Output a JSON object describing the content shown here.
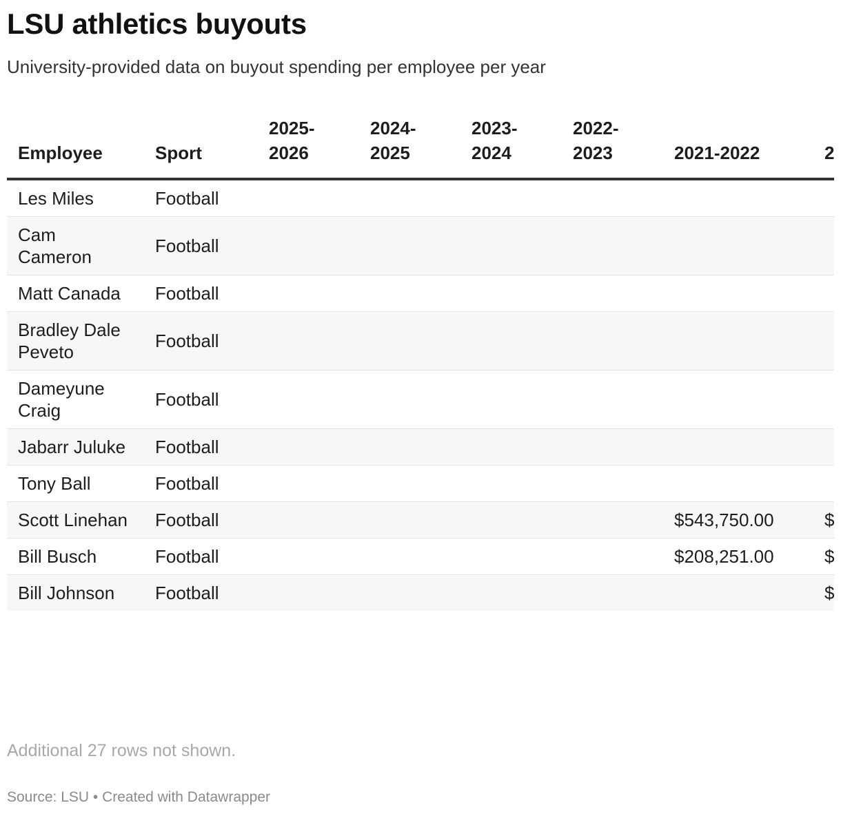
{
  "title": "LSU athletics buyouts",
  "subtitle": "University-provided data on buyout spending per employee per year",
  "chart_data": {
    "type": "table",
    "columns": [
      "Employee",
      "Sport",
      "2025-2026",
      "2024-2025",
      "2023-2024",
      "2022-2023",
      "2021-2022",
      "2"
    ],
    "rows": [
      {
        "employee": "Les Miles",
        "sport": "Football",
        "y2526": "",
        "y2425": "",
        "y2324": "",
        "y2223": "",
        "y2122": "",
        "y2021": ""
      },
      {
        "employee": "Cam Cameron",
        "sport": "Football",
        "y2526": "",
        "y2425": "",
        "y2324": "",
        "y2223": "",
        "y2122": "",
        "y2021": ""
      },
      {
        "employee": "Matt Canada",
        "sport": "Football",
        "y2526": "",
        "y2425": "",
        "y2324": "",
        "y2223": "",
        "y2122": "",
        "y2021": ""
      },
      {
        "employee": "Bradley Dale Peveto",
        "sport": "Football",
        "y2526": "",
        "y2425": "",
        "y2324": "",
        "y2223": "",
        "y2122": "",
        "y2021": ""
      },
      {
        "employee": "Dameyune Craig",
        "sport": "Football",
        "y2526": "",
        "y2425": "",
        "y2324": "",
        "y2223": "",
        "y2122": "",
        "y2021": ""
      },
      {
        "employee": "Jabarr Juluke",
        "sport": "Football",
        "y2526": "",
        "y2425": "",
        "y2324": "",
        "y2223": "",
        "y2122": "",
        "y2021": ""
      },
      {
        "employee": "Tony Ball",
        "sport": "Football",
        "y2526": "",
        "y2425": "",
        "y2324": "",
        "y2223": "",
        "y2122": "",
        "y2021": ""
      },
      {
        "employee": "Scott Linehan",
        "sport": "Football",
        "y2526": "",
        "y2425": "",
        "y2324": "",
        "y2223": "",
        "y2122": "$543,750.00",
        "y2021": "$"
      },
      {
        "employee": "Bill Busch",
        "sport": "Football",
        "y2526": "",
        "y2425": "",
        "y2324": "",
        "y2223": "",
        "y2122": "$208,251.00",
        "y2021": "$"
      },
      {
        "employee": "Bill Johnson",
        "sport": "Football",
        "y2526": "",
        "y2425": "",
        "y2324": "",
        "y2223": "",
        "y2122": "",
        "y2021": "$"
      }
    ]
  },
  "note": "Additional 27 rows not shown.",
  "footer": "Source: LSU • Created with Datawrapper"
}
